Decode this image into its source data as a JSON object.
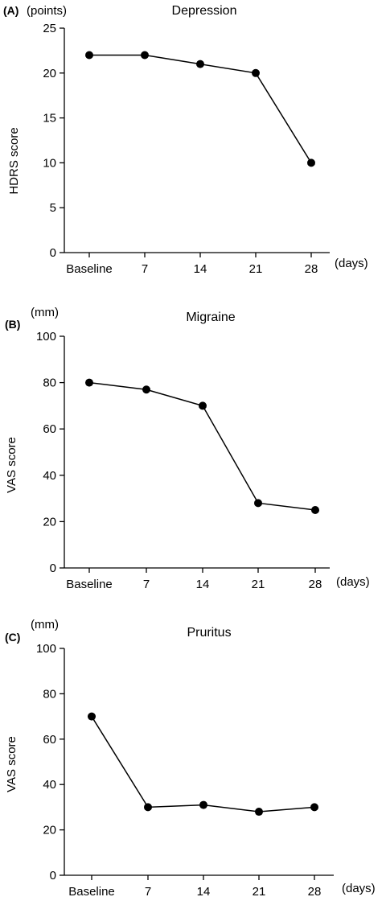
{
  "colors": {
    "ink": "#000000",
    "background": "#ffffff"
  },
  "chart_data": [
    {
      "type": "line",
      "panel_label": "(A)",
      "title": "Depression",
      "ylabel": "HDRS score",
      "yunit": "(points)",
      "xunit": "(days)",
      "categories": [
        "Baseline",
        "7",
        "14",
        "21",
        "28"
      ],
      "yticks": [
        "0",
        "5",
        "10",
        "15",
        "20",
        "25"
      ],
      "ylim": [
        0,
        25
      ],
      "values": [
        22,
        22,
        21,
        20,
        10
      ]
    },
    {
      "type": "line",
      "panel_label": "(B)",
      "title": "Migraine",
      "ylabel": "VAS  score",
      "yunit": "(mm)",
      "xunit": "(days)",
      "categories": [
        "Baseline",
        "7",
        "14",
        "21",
        "28"
      ],
      "yticks": [
        "0",
        "20",
        "40",
        "60",
        "80",
        "100"
      ],
      "ylim": [
        0,
        100
      ],
      "values": [
        80,
        77,
        70,
        28,
        25
      ]
    },
    {
      "type": "line",
      "panel_label": "(C)",
      "title": "Pruritus",
      "ylabel": "VAS  score",
      "yunit": "(mm)",
      "xunit": "(days)",
      "categories": [
        "Baseline",
        "7",
        "14",
        "21",
        "28"
      ],
      "yticks": [
        "0",
        "20",
        "40",
        "60",
        "80",
        "100"
      ],
      "ylim": [
        0,
        100
      ],
      "values": [
        70,
        30,
        31,
        28,
        30
      ]
    }
  ]
}
